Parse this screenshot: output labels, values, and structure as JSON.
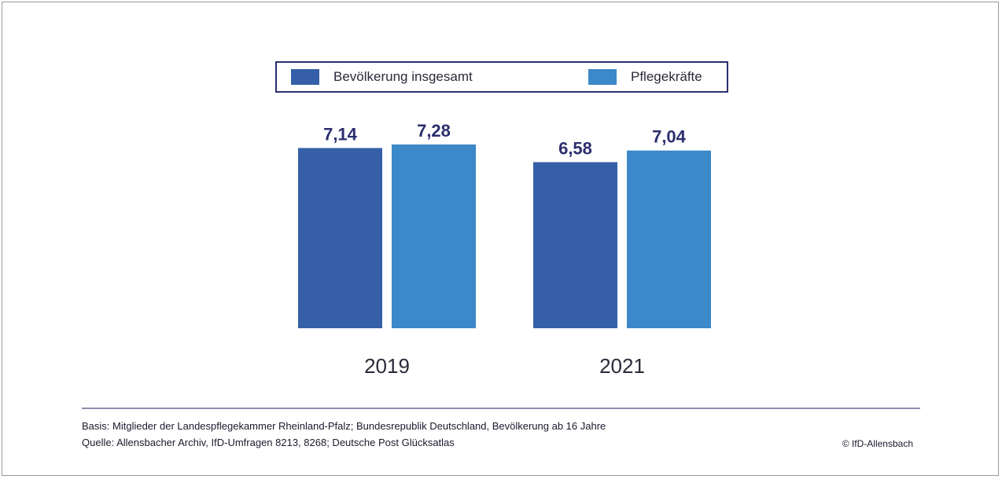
{
  "chart_data": {
    "type": "bar",
    "categories": [
      "2019",
      "2021"
    ],
    "series": [
      {
        "name": "Bevölkerung insgesamt",
        "values": [
          7.14,
          6.58
        ],
        "labels": [
          "7,14",
          "6,58"
        ],
        "color": "#3560a8"
      },
      {
        "name": "Pflegekräfte",
        "values": [
          7.28,
          7.04
        ],
        "labels": [
          "7,28",
          "7,04"
        ],
        "color": "#3c88c8"
      }
    ],
    "title": "",
    "xlabel": "",
    "ylabel": "",
    "ylim": [
      0,
      7.28
    ],
    "grid": false,
    "legend_position": "top"
  },
  "footer": {
    "basis": "Basis: Mitglieder der Landespflegekammer Rheinland-Pfalz; Bundesrepublik Deutschland, Bevölkerung ab 16 Jahre",
    "source": "Quelle: Allensbacher Archiv, IfD-Umfragen 8213, 8268; Deutsche Post Glücksatlas",
    "copyright": "© IfD-Allensbach"
  },
  "colors": {
    "value_label": "#2b2f6e",
    "category_label": "#2a2a3a",
    "legend_border": "#2b2f6e"
  }
}
